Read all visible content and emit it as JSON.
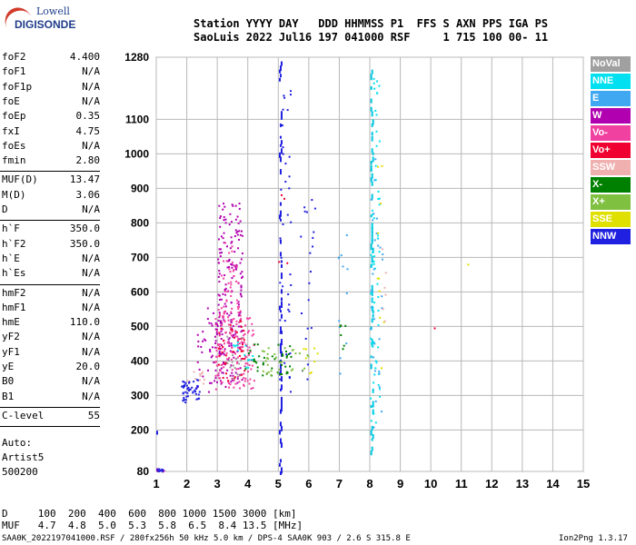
{
  "logo": {
    "line1": "Lowell",
    "line2": "DIGISONDE"
  },
  "header": {
    "line1": "Station YYYY DAY   DDD HHMMSS P1  FFS S AXN PPS IGA PS",
    "line2": "SaoLuis 2022 Jul16 197 041000 RSF     1 715 100 00- 11"
  },
  "params": {
    "group1": [
      {
        "name": "foF2",
        "value": "4.400"
      },
      {
        "name": "foF1",
        "value": "N/A"
      },
      {
        "name": "foF1p",
        "value": "N/A"
      },
      {
        "name": "foE",
        "value": "N/A"
      },
      {
        "name": "foEp",
        "value": "0.35"
      },
      {
        "name": "fxI",
        "value": "4.75"
      },
      {
        "name": "foEs",
        "value": "N/A"
      },
      {
        "name": "fmin",
        "value": "2.80"
      }
    ],
    "group2": [
      {
        "name": "MUF(D)",
        "value": "13.47"
      },
      {
        "name": "M(D)",
        "value": "3.06"
      },
      {
        "name": "D",
        "value": "N/A"
      }
    ],
    "group3": [
      {
        "name": "h`F",
        "value": "350.0"
      },
      {
        "name": "h`F2",
        "value": "350.0"
      },
      {
        "name": "h`E",
        "value": "N/A"
      },
      {
        "name": "h`Es",
        "value": "N/A"
      }
    ],
    "group4": [
      {
        "name": "hmF2",
        "value": "N/A"
      },
      {
        "name": "hmF1",
        "value": "N/A"
      },
      {
        "name": "hmE",
        "value": "110.0"
      },
      {
        "name": "yF2",
        "value": "N/A"
      },
      {
        "name": "yF1",
        "value": "N/A"
      },
      {
        "name": "yE",
        "value": "20.0"
      },
      {
        "name": "B0",
        "value": "N/A"
      },
      {
        "name": "B1",
        "value": "N/A"
      }
    ],
    "group5": [
      {
        "name": "C-level",
        "value": "55"
      }
    ],
    "auto": [
      "Auto:",
      "Artist5",
      "500200"
    ]
  },
  "legend": [
    {
      "label": "NoVal",
      "color": "#a0a0a0"
    },
    {
      "label": "NNE",
      "color": "#00e0f0"
    },
    {
      "label": "E",
      "color": "#40a8f0"
    },
    {
      "label": "W",
      "color": "#b000b0"
    },
    {
      "label": "Vo-",
      "color": "#f040a0"
    },
    {
      "label": "Vo+",
      "color": "#f00030"
    },
    {
      "label": "SSW",
      "color": "#f0b0b0"
    },
    {
      "label": "X-",
      "color": "#008000"
    },
    {
      "label": "X+",
      "color": "#80c040"
    },
    {
      "label": "SSE",
      "color": "#e0e000"
    },
    {
      "label": "NNW",
      "color": "#2020e0"
    }
  ],
  "footer": {
    "line1": "D     100  200  400  600  800 1000 1500 3000 [km]",
    "line2": "MUF   4.7  4.8  5.0  5.3  5.8  6.5  8.4 13.5 [MHz]",
    "line3": "SAA0K_2022197041000.RSF / 280fx256h 50 kHz 5.0 km / DPS-4 SAA0K 903 / 2.6 S 315.8 E",
    "line4": "Ion2Png 1.3.17"
  },
  "chart_data": {
    "type": "scatter",
    "xlim": [
      1,
      15
    ],
    "ylim": [
      80,
      1280
    ],
    "x_ticks": [
      1,
      2,
      3,
      4,
      5,
      6,
      7,
      8,
      9,
      10,
      11,
      12,
      13,
      14,
      15
    ],
    "y_ticks": [
      80,
      200,
      300,
      400,
      500,
      600,
      700,
      800,
      900,
      1000,
      1100,
      1280
    ],
    "grid": true,
    "legend_position": "right",
    "series": [
      {
        "name": "W",
        "color": "#b000b0",
        "clusters": [
          [
            3.0,
            3.8,
            320,
            860,
            180
          ],
          [
            2.3,
            3.2,
            300,
            560,
            60
          ],
          [
            1.0,
            1.3,
            80,
            90,
            6
          ]
        ]
      },
      {
        "name": "Vo-",
        "color": "#f040a0",
        "clusters": [
          [
            2.9,
            4.2,
            320,
            560,
            160
          ],
          [
            3.1,
            3.7,
            560,
            760,
            30
          ]
        ]
      },
      {
        "name": "Vo+",
        "color": "#f00030",
        "clusters": [
          [
            3.0,
            3.9,
            340,
            520,
            40
          ],
          [
            5.0,
            5.3,
            600,
            900,
            4
          ],
          [
            10.1,
            10.1,
            495,
            500,
            1
          ]
        ]
      },
      {
        "name": "NNW",
        "color": "#2020e0",
        "clusters": [
          [
            1.8,
            2.4,
            280,
            350,
            50
          ],
          [
            5.0,
            5.4,
            300,
            1200,
            40
          ],
          [
            5.7,
            6.2,
            300,
            900,
            20
          ],
          [
            1.0,
            1.2,
            80,
            90,
            8
          ],
          [
            1.0,
            1.0,
            190,
            200,
            3
          ]
        ]
      },
      {
        "name": "NNE",
        "color": "#00e0f0",
        "clusters": [
          [
            8.0,
            8.3,
            180,
            1260,
            60
          ],
          [
            3.5,
            4.2,
            380,
            460,
            15
          ]
        ]
      },
      {
        "name": "E",
        "color": "#40a8f0",
        "clusters": [
          [
            8.0,
            8.4,
            200,
            1000,
            30
          ],
          [
            6.8,
            7.3,
            300,
            800,
            12
          ]
        ]
      },
      {
        "name": "X-",
        "color": "#008000",
        "clusters": [
          [
            3.8,
            5.4,
            360,
            460,
            40
          ],
          [
            7.0,
            7.2,
            420,
            520,
            6
          ]
        ]
      },
      {
        "name": "X+",
        "color": "#80c040",
        "clusters": [
          [
            4.4,
            5.2,
            360,
            440,
            20
          ],
          [
            5.4,
            6.0,
            360,
            440,
            10
          ]
        ]
      },
      {
        "name": "SSE",
        "color": "#e0e000",
        "clusters": [
          [
            5.8,
            6.3,
            360,
            440,
            8
          ],
          [
            8.2,
            8.5,
            350,
            1000,
            10
          ],
          [
            11.2,
            11.2,
            680,
            682,
            1
          ]
        ]
      },
      {
        "name": "SSW",
        "color": "#f0b0b0",
        "clusters": [
          [
            2.0,
            2.6,
            330,
            400,
            10
          ],
          [
            8.3,
            8.5,
            500,
            800,
            6
          ]
        ]
      },
      {
        "name": "NoVal",
        "color": "#a0a0a0",
        "clusters": [
          [
            3.3,
            3.8,
            350,
            480,
            15
          ]
        ]
      }
    ],
    "vertical_lines": [
      {
        "x": 5.05,
        "y_from": 80,
        "y_to": 1280,
        "color": "#2020e0"
      },
      {
        "x": 8.05,
        "y_from": 140,
        "y_to": 1280,
        "color": "#00c8e0"
      }
    ]
  }
}
